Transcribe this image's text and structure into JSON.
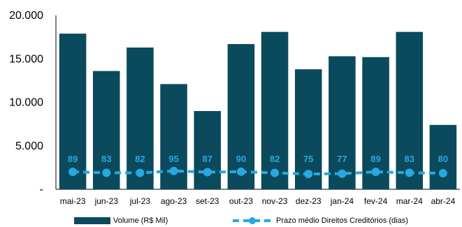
{
  "chart_data": {
    "type": "bar",
    "categories": [
      "mai-23",
      "jun-23",
      "jul-23",
      "ago-23",
      "set-23",
      "out-23",
      "nov-23",
      "dez-23",
      "jan-24",
      "fev-24",
      "mar-24",
      "abr-24"
    ],
    "y_ticks": [
      "-",
      "5.000",
      "10.000",
      "15.000",
      "20.000"
    ],
    "ylim": [
      0,
      20000
    ],
    "series": [
      {
        "name": "Volume (R$ Mil)",
        "type": "bar",
        "color": "#0a4a5c",
        "values": [
          17900,
          13600,
          16300,
          12100,
          9000,
          16700,
          18100,
          13800,
          15300,
          15200,
          18100,
          7400
        ]
      },
      {
        "name": "Prazo médio Direitos Creditórios (dias)",
        "type": "line",
        "style": "dashed",
        "color": "#29a7e1",
        "values": [
          89,
          83,
          82,
          95,
          87,
          90,
          82,
          75,
          77,
          89,
          83,
          80
        ],
        "labels": [
          "89",
          "83",
          "82",
          "95",
          "87",
          "90",
          "82",
          "75",
          "77",
          "89",
          "83",
          "80"
        ]
      }
    ],
    "legend_position": "bottom",
    "grid": false
  }
}
